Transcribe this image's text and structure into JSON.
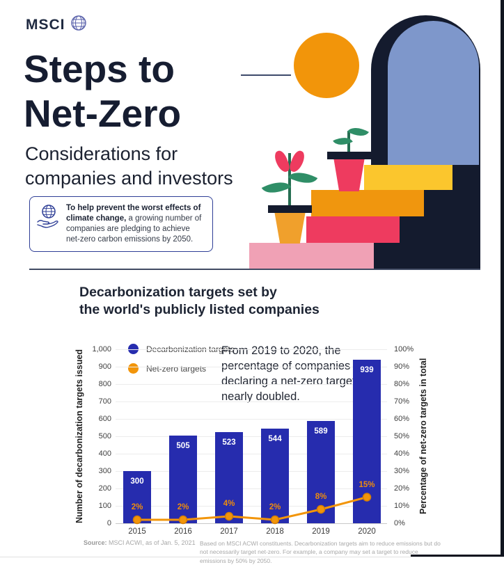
{
  "brand": {
    "logo_text": "MSCI"
  },
  "header": {
    "title_line1": "Steps to",
    "title_line2": "Net-Zero",
    "subtitle_line1": "Considerations for",
    "subtitle_line2": "companies and investors",
    "callout": {
      "bold_text": "To help prevent the worst effects of climate change,",
      "rest_text": " a growing number of companies are pledging to achieve net-zero carbon emissions by 2050."
    }
  },
  "chart": {
    "title_line1": "Decarbonization targets set by",
    "title_line2": "the world's publicly listed companies",
    "annotation": "From 2019 to 2020, the percentage of companies declaring a net-zero target nearly doubled.",
    "source_label": "Source:",
    "source_text": " MSCI ACWI, as of Jan. 5, 2021",
    "footnote": "Based on MSCI ACWI constituents. Decarbonization targets aim to reduce emissions but do not necessarily target net-zero. For example, a company may set a target to reduce emissions by 50% by 2050."
  },
  "chart_data": {
    "type": "bar",
    "categories": [
      "2015",
      "2016",
      "2017",
      "2018",
      "2019",
      "2020"
    ],
    "series": [
      {
        "name": "Decarbonization targets",
        "type": "bar",
        "axis": "left",
        "values": [
          300,
          505,
          523,
          544,
          589,
          939
        ],
        "color": "#262cae"
      },
      {
        "name": "Net-zero targets",
        "type": "line",
        "axis": "right",
        "values": [
          2,
          2,
          4,
          2,
          8,
          15
        ],
        "labels": [
          "2%",
          "2%",
          "4%",
          "2%",
          "8%",
          "15%"
        ],
        "color": "#f2950a",
        "marker_stroke": "#d47e06"
      }
    ],
    "title": "Decarbonization targets set by the world's publicly listed companies",
    "xlabel": "",
    "left_axis": {
      "title": "Number of decarbonization targets issued",
      "min": 0,
      "max": 1000,
      "ticks": [
        "1,000",
        "900",
        "800",
        "700",
        "600",
        "500",
        "400",
        "300",
        "200",
        "100",
        "0"
      ]
    },
    "right_axis": {
      "title": "Percentage of net-zero targets in total",
      "min": 0,
      "max": 100,
      "ticks": [
        "100%",
        "90%",
        "80%",
        "70%",
        "60%",
        "50%",
        "40%",
        "30%",
        "20%",
        "10%",
        "0%"
      ]
    },
    "grid": true,
    "legend_position": "top-left"
  },
  "colors": {
    "navy_dark": "#141b2e",
    "bar_blue": "#262cae",
    "accent_orange": "#f2950a",
    "arch_periwinkle": "#7e97cb",
    "step_yellow": "#fbc62d",
    "step_red": "#ee3b5f",
    "step_light_pink": "#f0a1b5",
    "leaf_green": "#2f8e67"
  }
}
